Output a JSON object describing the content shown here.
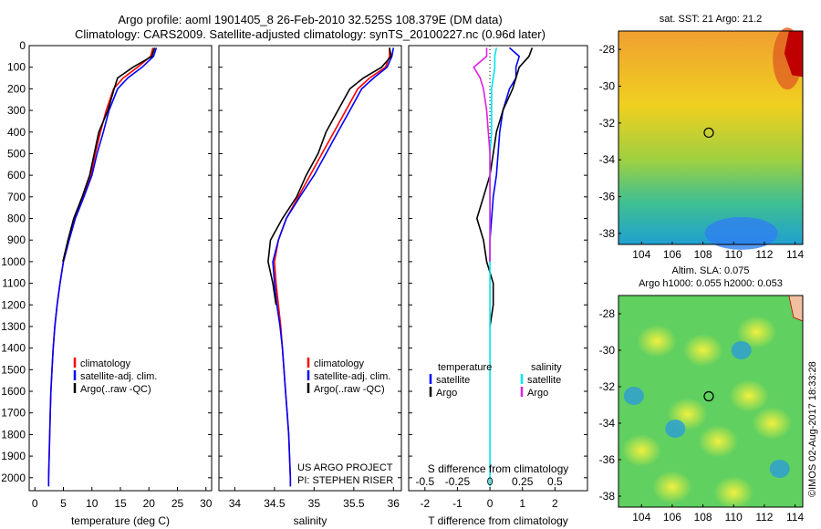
{
  "header": {
    "line1": "Argo profile: aoml 1901405_8 26-Feb-2010 32.525S 108.379E (DM data)",
    "line2": "Climatology: CARS2009. Satellite-adjusted climatology: synTS_20100227.nc (0.96d later)"
  },
  "stamp": "©IMOS 02-Aug-2017 18:33:28",
  "colors": {
    "climatology": "#ff0000",
    "satellite": "#0000ff",
    "argo": "#000000",
    "salinity_satellite": "#00e5ee",
    "salinity_argo": "#e020e0"
  },
  "chart_data": [
    {
      "type": "line",
      "xlabel": "temperature (deg C)",
      "xlim": [
        -1,
        31
      ],
      "xticks": [
        "0",
        "5",
        "10",
        "15",
        "20",
        "25",
        "30"
      ],
      "ylim": [
        2060,
        0
      ],
      "yticks": [
        "0",
        "100",
        "200",
        "300",
        "400",
        "500",
        "600",
        "700",
        "800",
        "900",
        "1000",
        "1100",
        "1200",
        "1300",
        "1400",
        "1500",
        "1600",
        "1700",
        "1800",
        "1900",
        "2000"
      ],
      "legend": [
        "climatology",
        "satellite-adj. clim.",
        "Argo(..raw -QC)"
      ],
      "series": [
        {
          "name": "climatology",
          "color": "#ff0000",
          "x": [
            20.7,
            20.3,
            18.0,
            15.5,
            13.8,
            12.5,
            11.5,
            10.6,
            9.8,
            8.5,
            7.0,
            6.0,
            5.0,
            4.4,
            3.9,
            3.5,
            3.2,
            3.0,
            2.8,
            2.7,
            2.6,
            2.5,
            2.4,
            2.4
          ],
          "y": [
            10,
            50,
            100,
            150,
            200,
            300,
            400,
            500,
            600,
            700,
            800,
            900,
            1000,
            1100,
            1200,
            1300,
            1400,
            1500,
            1600,
            1700,
            1800,
            1900,
            2000,
            2040
          ]
        },
        {
          "name": "satellite-adj. clim.",
          "color": "#0000ff",
          "x": [
            21.3,
            20.8,
            18.8,
            16.3,
            14.5,
            13.0,
            12.0,
            10.9,
            10.0,
            8.6,
            7.1,
            6.0,
            5.0,
            4.4,
            3.9,
            3.5,
            3.2,
            3.0,
            2.8,
            2.7,
            2.6,
            2.5,
            2.4,
            2.4
          ],
          "y": [
            10,
            50,
            100,
            150,
            200,
            300,
            400,
            500,
            600,
            700,
            800,
            900,
            1000,
            1100,
            1200,
            1300,
            1400,
            1500,
            1600,
            1700,
            1800,
            1900,
            2000,
            2040
          ]
        },
        {
          "name": "Argo(..raw -QC)",
          "color": "#000000",
          "x": [
            21.0,
            20.5,
            17.2,
            14.5,
            13.9,
            12.8,
            11.2,
            10.4,
            9.6,
            8.3,
            6.8,
            5.8,
            4.9
          ],
          "y": [
            10,
            50,
            100,
            150,
            200,
            300,
            400,
            500,
            600,
            700,
            800,
            900,
            1000
          ]
        }
      ]
    },
    {
      "type": "line",
      "xlabel": "salinity",
      "xlim": [
        33.8,
        36.1
      ],
      "xticks": [
        "34",
        "34.5",
        "35",
        "35.5",
        "36"
      ],
      "ylim": [
        2060,
        0
      ],
      "legend": [
        "climatology",
        "satellite-adj. clim.",
        "Argo(..raw -QC)"
      ],
      "annotation": [
        "US ARGO PROJECT",
        "PI: STEPHEN RISER"
      ],
      "series": [
        {
          "name": "climatology",
          "color": "#ff0000",
          "x": [
            35.95,
            35.95,
            35.9,
            35.7,
            35.55,
            35.4,
            35.25,
            35.1,
            34.95,
            34.8,
            34.65,
            34.55,
            34.5,
            34.52,
            34.55,
            34.58,
            34.6,
            34.62,
            34.64,
            34.66,
            34.68,
            34.69,
            34.7,
            34.7
          ],
          "y": [
            10,
            50,
            100,
            150,
            200,
            300,
            400,
            500,
            600,
            700,
            800,
            900,
            1000,
            1100,
            1200,
            1300,
            1400,
            1500,
            1600,
            1700,
            1800,
            1900,
            2000,
            2040
          ]
        },
        {
          "name": "satellite-adj. clim.",
          "color": "#0000ff",
          "x": [
            36.0,
            35.98,
            35.92,
            35.75,
            35.6,
            35.45,
            35.3,
            35.15,
            35.0,
            34.82,
            34.65,
            34.55,
            34.48,
            34.5,
            34.53,
            34.57,
            34.6,
            34.62,
            34.64,
            34.66,
            34.68,
            34.69,
            34.7,
            34.7
          ],
          "y": [
            10,
            50,
            100,
            150,
            200,
            300,
            400,
            500,
            600,
            700,
            800,
            900,
            1000,
            1100,
            1200,
            1300,
            1400,
            1500,
            1600,
            1700,
            1800,
            1900,
            2000,
            2040
          ]
        },
        {
          "name": "Argo(..raw -QC)",
          "color": "#000000",
          "x": [
            35.95,
            35.97,
            35.85,
            35.62,
            35.45,
            35.3,
            35.15,
            35.05,
            34.9,
            34.78,
            34.6,
            34.45,
            34.42,
            34.48,
            34.52
          ],
          "y": [
            10,
            50,
            100,
            150,
            200,
            300,
            400,
            500,
            600,
            700,
            800,
            900,
            1000,
            1100,
            1200
          ]
        }
      ]
    },
    {
      "type": "line",
      "xlabel": "T difference from climatology",
      "xlabel2": "S difference from climatology",
      "xlim": [
        -2.5,
        3.0
      ],
      "xticks": [
        "-2",
        "-1",
        "0",
        "1",
        "2"
      ],
      "xticks2": [
        "-0.5",
        "-0.25",
        "0",
        "0.25",
        "0.5"
      ],
      "ylim": [
        2060,
        0
      ],
      "legend": [
        "temperature",
        "satellite",
        "Argo",
        "salinity",
        "satellite",
        "Argo"
      ],
      "series": [
        {
          "name": "satellite",
          "color": "#0000ff",
          "x": [
            0.6,
            0.9,
            0.8,
            0.8,
            0.6,
            0.4,
            0.3,
            0.25,
            0.2,
            0.1,
            0.05,
            0.0,
            0.0
          ],
          "y": [
            10,
            50,
            100,
            150,
            200,
            300,
            400,
            500,
            600,
            700,
            800,
            900,
            1000
          ]
        },
        {
          "name": "Argo",
          "color": "#000000",
          "x": [
            1.3,
            1.2,
            0.9,
            0.8,
            0.7,
            0.4,
            0.2,
            0.1,
            0.0,
            -0.2,
            -0.4,
            -0.2,
            -0.1,
            0.0,
            0.1,
            0.1,
            0.0
          ],
          "y": [
            10,
            50,
            100,
            150,
            200,
            300,
            400,
            500,
            600,
            700,
            800,
            900,
            1000,
            1050,
            1100,
            1200,
            1300
          ]
        },
        {
          "name": "salinity satellite",
          "color": "#00e5ee",
          "x": [
            0.2,
            0.15,
            0.15,
            0.1,
            0.05,
            0.05,
            0.05,
            0.0,
            0.0,
            0.0,
            0.0,
            0.0,
            0.0,
            0.0,
            0.0,
            0.0,
            0.0,
            0.0,
            0.0,
            0.0
          ],
          "y": [
            10,
            50,
            100,
            150,
            200,
            300,
            400,
            500,
            600,
            800,
            1000,
            1100,
            1200,
            1300,
            1400,
            1500,
            1600,
            1700,
            1800,
            2040
          ]
        },
        {
          "name": "salinity Argo",
          "color": "#e020e0",
          "x": [
            -0.1,
            -0.1,
            -0.5,
            -0.3,
            -0.2,
            -0.1,
            -0.05,
            0.0,
            0.0,
            0.0,
            0.0
          ],
          "y": [
            10,
            50,
            100,
            150,
            200,
            300,
            400,
            500,
            600,
            800,
            1000
          ]
        }
      ]
    }
  ],
  "maps": [
    {
      "title": "sat. SST: 21 Argo: 21.2",
      "xticks": [
        "104",
        "106",
        "108",
        "110",
        "112",
        "114"
      ],
      "yticks": [
        "-28",
        "-30",
        "-32",
        "-34",
        "-36",
        "-38"
      ]
    },
    {
      "title1": "Altim. SLA: 0.075",
      "title2": "Argo h1000: 0.055 h2000: 0.053",
      "xticks": [
        "104",
        "106",
        "108",
        "110",
        "112",
        "114"
      ],
      "yticks": [
        "-28",
        "-30",
        "-32",
        "-34",
        "-36",
        "-38"
      ]
    }
  ]
}
